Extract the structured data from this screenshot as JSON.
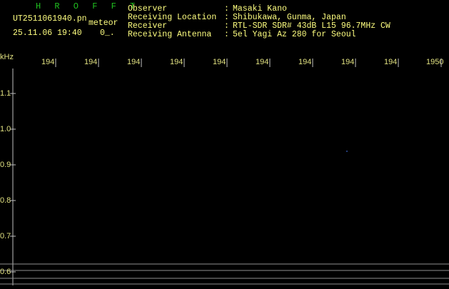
{
  "header": {
    "app": "H R O F F T",
    "file": "UT2511061940.pn",
    "kind": "meteor",
    "datetime": "25.11.06 19:40",
    "count": "0_.",
    "info": [
      {
        "label": "Observer",
        "sep": ":",
        "value": "Masaki Kano"
      },
      {
        "label": "Receiving Location",
        "sep": ":",
        "value": "Shibukawa, Gunma, Japan"
      },
      {
        "label": "Receiver",
        "sep": ":",
        "value": "RTL-SDR SDR# 43dB L15 96.7MHz CW"
      },
      {
        "label": "Receiving Antenna",
        "sep": ":",
        "value": "5el Yagi Az 280 for Seoul"
      }
    ]
  },
  "plot": {
    "y_unit": "kHz",
    "time_labels": [
      "194",
      "194",
      "194",
      "194",
      "194",
      "194",
      "194",
      "194",
      "194",
      "1950"
    ],
    "freq_labels": [
      "1.1",
      "1.0",
      "0.9",
      "0.8",
      "0.7",
      "0.6"
    ]
  }
}
